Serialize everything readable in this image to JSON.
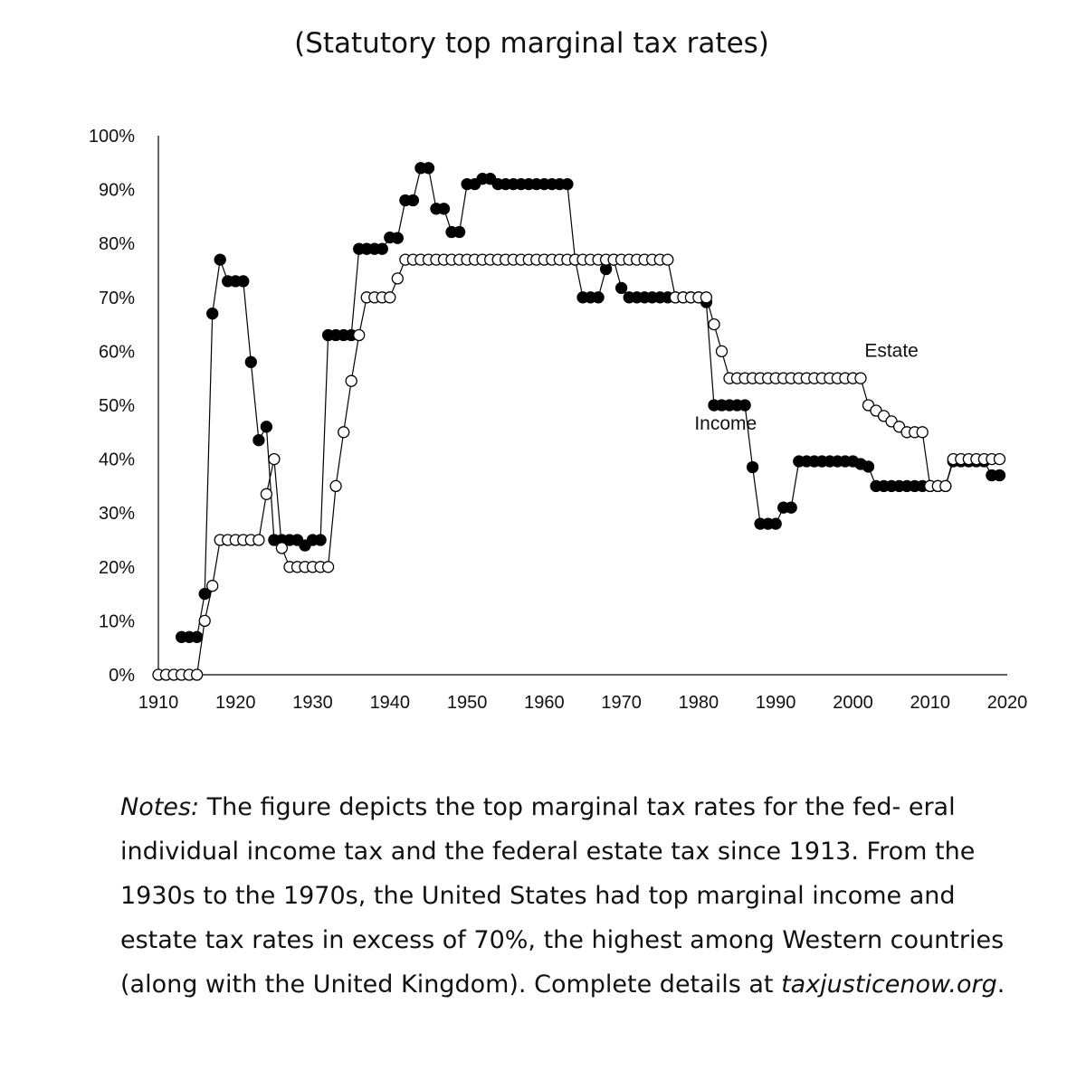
{
  "subtitle": "(Statutory top marginal tax rates)",
  "chart_data": {
    "type": "line",
    "title": "(Statutory top marginal tax rates)",
    "xlabel": "",
    "ylabel": "",
    "xlim": [
      1910,
      2020
    ],
    "ylim": [
      0,
      100
    ],
    "x_ticks": [
      1910,
      1920,
      1930,
      1940,
      1950,
      1960,
      1970,
      1980,
      1990,
      2000,
      2010,
      2020
    ],
    "y_ticks": [
      "0%",
      "10%",
      "20%",
      "30%",
      "40%",
      "50%",
      "60%",
      "70%",
      "80%",
      "90%",
      "100%"
    ],
    "grid": false,
    "series": [
      {
        "name": "Income",
        "marker": "filled-circle",
        "x": [
          1913,
          1914,
          1915,
          1916,
          1917,
          1918,
          1919,
          1920,
          1921,
          1922,
          1923,
          1924,
          1925,
          1926,
          1927,
          1928,
          1929,
          1930,
          1931,
          1932,
          1933,
          1934,
          1935,
          1936,
          1937,
          1938,
          1939,
          1940,
          1941,
          1942,
          1943,
          1944,
          1945,
          1946,
          1947,
          1948,
          1949,
          1950,
          1951,
          1952,
          1953,
          1954,
          1955,
          1956,
          1957,
          1958,
          1959,
          1960,
          1961,
          1962,
          1963,
          1964,
          1965,
          1966,
          1967,
          1968,
          1969,
          1970,
          1971,
          1972,
          1973,
          1974,
          1975,
          1976,
          1977,
          1978,
          1979,
          1980,
          1981,
          1982,
          1983,
          1984,
          1985,
          1986,
          1987,
          1988,
          1989,
          1990,
          1991,
          1992,
          1993,
          1994,
          1995,
          1996,
          1997,
          1998,
          1999,
          2000,
          2001,
          2002,
          2003,
          2004,
          2005,
          2006,
          2007,
          2008,
          2009,
          2010,
          2011,
          2012,
          2013,
          2014,
          2015,
          2016,
          2017,
          2018,
          2019
        ],
        "values": [
          7,
          7,
          7,
          15,
          67,
          77,
          73,
          73,
          73,
          58,
          43.5,
          46,
          25,
          25,
          25,
          25,
          24,
          25,
          25,
          63,
          63,
          63,
          63,
          79,
          79,
          79,
          79,
          81.1,
          81,
          88,
          88,
          94,
          94,
          86.45,
          86.45,
          82.13,
          82.13,
          91,
          91,
          92,
          92,
          91,
          91,
          91,
          91,
          91,
          91,
          91,
          91,
          91,
          91,
          77,
          70,
          70,
          70,
          75.25,
          77,
          71.75,
          70,
          70,
          70,
          70,
          70,
          70,
          70,
          70,
          70,
          70,
          69.13,
          50,
          50,
          50,
          50,
          50,
          38.5,
          28,
          28,
          28,
          31,
          31,
          39.6,
          39.6,
          39.6,
          39.6,
          39.6,
          39.6,
          39.6,
          39.6,
          39.1,
          38.6,
          35,
          35,
          35,
          35,
          35,
          35,
          35,
          35,
          35,
          35,
          39.6,
          39.6,
          39.6,
          39.6,
          39.6,
          37,
          37
        ],
        "color": "#000000"
      },
      {
        "name": "Estate",
        "marker": "open-circle",
        "x": [
          1910,
          1911,
          1912,
          1913,
          1914,
          1915,
          1916,
          1917,
          1918,
          1919,
          1920,
          1921,
          1922,
          1923,
          1924,
          1925,
          1926,
          1927,
          1928,
          1929,
          1930,
          1931,
          1932,
          1933,
          1934,
          1935,
          1936,
          1937,
          1938,
          1939,
          1940,
          1941,
          1942,
          1943,
          1944,
          1945,
          1946,
          1947,
          1948,
          1949,
          1950,
          1951,
          1952,
          1953,
          1954,
          1955,
          1956,
          1957,
          1958,
          1959,
          1960,
          1961,
          1962,
          1963,
          1964,
          1965,
          1966,
          1967,
          1968,
          1969,
          1970,
          1971,
          1972,
          1973,
          1974,
          1975,
          1976,
          1977,
          1978,
          1979,
          1980,
          1981,
          1982,
          1983,
          1984,
          1985,
          1986,
          1987,
          1988,
          1989,
          1990,
          1991,
          1992,
          1993,
          1994,
          1995,
          1996,
          1997,
          1998,
          1999,
          2000,
          2001,
          2002,
          2003,
          2004,
          2005,
          2006,
          2007,
          2008,
          2009,
          2010,
          2011,
          2012,
          2013,
          2014,
          2015,
          2016,
          2017,
          2018,
          2019
        ],
        "values": [
          0,
          0,
          0,
          0,
          0,
          0,
          10,
          16.5,
          25,
          25,
          25,
          25,
          25,
          25,
          33.5,
          40,
          23.5,
          20,
          20,
          20,
          20,
          20,
          20,
          35,
          45,
          54.5,
          63,
          70,
          70,
          70,
          70,
          73.5,
          77,
          77,
          77,
          77,
          77,
          77,
          77,
          77,
          77,
          77,
          77,
          77,
          77,
          77,
          77,
          77,
          77,
          77,
          77,
          77,
          77,
          77,
          77,
          77,
          77,
          77,
          77,
          77,
          77,
          77,
          77,
          77,
          77,
          77,
          77,
          70,
          70,
          70,
          70,
          70,
          65,
          60,
          55,
          55,
          55,
          55,
          55,
          55,
          55,
          55,
          55,
          55,
          55,
          55,
          55,
          55,
          55,
          55,
          55,
          55,
          50,
          49,
          48,
          47,
          46,
          45,
          45,
          45,
          35,
          35,
          35,
          40,
          40,
          40,
          40,
          40,
          40,
          40
        ],
        "color": "#000000"
      }
    ],
    "annotations": [
      {
        "text": "Estate",
        "x": 2005,
        "y": 59
      },
      {
        "text": "Income",
        "x": 1983.5,
        "y": 45.5
      }
    ]
  },
  "notes": {
    "label": "Notes:",
    "body": " The figure depicts the top marginal tax rates for the fed- eral individual income tax and the federal estate tax since 1913. From the 1930s to the 1970s, the United States had top marginal income and estate tax rates in excess of 70%, the highest among Western countries (along with the United Kingdom). Complete details at ",
    "link": "taxjusticenow.org",
    "end": "."
  }
}
